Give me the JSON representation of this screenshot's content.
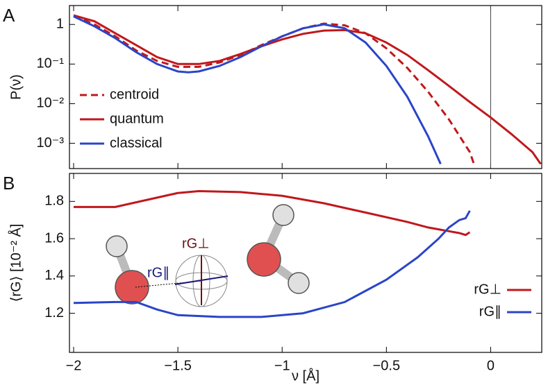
{
  "chart_data": [
    {
      "type": "line",
      "panel_label": "A",
      "ylabel": "P(ν)",
      "yscale": "log",
      "xlim": [
        -2.02,
        0.245
      ],
      "ylim": [
        0.00023,
        3
      ],
      "xticks": [
        -2,
        -1.5,
        -1,
        -0.5,
        0
      ],
      "yticks": [
        1,
        {
          "value": 0.1,
          "label": "10⁻¹"
        },
        {
          "value": 0.01,
          "label": "10⁻²"
        },
        {
          "value": 0.001,
          "label": "10⁻³"
        }
      ],
      "vline": 0,
      "legend": "lower left",
      "series": [
        {
          "name": "centroid",
          "color": "#c0181c",
          "dash": true,
          "x": [
            -2,
            -1.9,
            -1.8,
            -1.7,
            -1.6,
            -1.5,
            -1.4,
            -1.3,
            -1.2,
            -1.1,
            -1.0,
            -0.9,
            -0.8,
            -0.7,
            -0.6,
            -0.5,
            -0.4,
            -0.3,
            -0.2,
            -0.1,
            -0.08
          ],
          "values": [
            1.65,
            1.0,
            0.5,
            0.22,
            0.12,
            0.085,
            0.085,
            0.11,
            0.17,
            0.3,
            0.5,
            0.8,
            1.05,
            0.95,
            0.6,
            0.25,
            0.08,
            0.02,
            0.004,
            0.0006,
            0.0003
          ]
        },
        {
          "name": "quantum",
          "color": "#c0181c",
          "x": [
            -2,
            -1.9,
            -1.8,
            -1.7,
            -1.6,
            -1.5,
            -1.4,
            -1.3,
            -1.2,
            -1.1,
            -1.0,
            -0.9,
            -0.8,
            -0.7,
            -0.6,
            -0.5,
            -0.4,
            -0.3,
            -0.2,
            -0.1,
            0,
            0.1,
            0.2,
            0.24
          ],
          "values": [
            1.7,
            1.2,
            0.6,
            0.3,
            0.15,
            0.1,
            0.1,
            0.12,
            0.18,
            0.28,
            0.42,
            0.58,
            0.7,
            0.72,
            0.6,
            0.35,
            0.17,
            0.07,
            0.028,
            0.011,
            0.0045,
            0.0017,
            0.0006,
            0.0003
          ]
        },
        {
          "name": "classical",
          "color": "#2a45c8",
          "x": [
            -2,
            -1.9,
            -1.8,
            -1.7,
            -1.6,
            -1.5,
            -1.45,
            -1.4,
            -1.3,
            -1.2,
            -1.1,
            -1.0,
            -0.9,
            -0.8,
            -0.7,
            -0.6,
            -0.5,
            -0.4,
            -0.3,
            -0.24
          ],
          "values": [
            1.6,
            0.9,
            0.45,
            0.2,
            0.1,
            0.065,
            0.062,
            0.065,
            0.09,
            0.15,
            0.28,
            0.5,
            0.8,
            1.0,
            0.8,
            0.35,
            0.09,
            0.015,
            0.0015,
            0.0003
          ]
        }
      ]
    },
    {
      "type": "line",
      "panel_label": "B",
      "ylabel": "⟨rG⟩ [10⁻² Å]",
      "xlabel": "ν [Å]",
      "xlim": [
        -2.02,
        0.245
      ],
      "ylim": [
        0.99,
        1.95
      ],
      "xticks": [
        {
          "value": -2,
          "label": "−2"
        },
        {
          "value": -1.5,
          "label": "−1.5"
        },
        {
          "value": -1,
          "label": "−1"
        },
        {
          "value": -0.5,
          "label": "−0.5"
        },
        0
      ],
      "yticks": [
        1.2,
        1.4,
        1.6,
        1.8
      ],
      "legend": "lower right",
      "annotations": [
        "rG⊥",
        "rG∥"
      ],
      "series": [
        {
          "name": "rG⊥",
          "color": "#c0181c",
          "x": [
            -2,
            -1.8,
            -1.6,
            -1.5,
            -1.4,
            -1.2,
            -1.0,
            -0.8,
            -0.6,
            -0.4,
            -0.3,
            -0.2,
            -0.15,
            -0.12,
            -0.1
          ],
          "values": [
            1.77,
            1.77,
            1.82,
            1.845,
            1.855,
            1.85,
            1.83,
            1.79,
            1.74,
            1.69,
            1.66,
            1.64,
            1.63,
            1.62,
            1.635
          ]
        },
        {
          "name": "rG∥",
          "color": "#2a45c8",
          "x": [
            -2,
            -1.8,
            -1.7,
            -1.6,
            -1.5,
            -1.3,
            -1.1,
            -0.9,
            -0.7,
            -0.5,
            -0.35,
            -0.25,
            -0.2,
            -0.15,
            -0.12,
            -0.1
          ],
          "values": [
            1.255,
            1.26,
            1.26,
            1.22,
            1.19,
            1.18,
            1.18,
            1.2,
            1.26,
            1.38,
            1.5,
            1.6,
            1.66,
            1.7,
            1.71,
            1.75
          ]
        }
      ]
    }
  ]
}
